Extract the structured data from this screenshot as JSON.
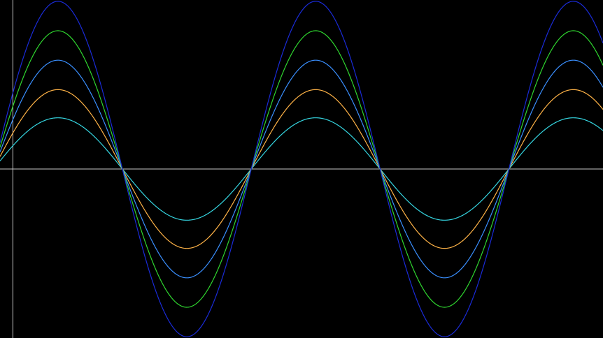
{
  "chart_data": {
    "type": "line",
    "title": "",
    "xlabel": "",
    "ylabel": "",
    "xlim": [
      -0.1,
      4.58
    ],
    "ylim": [
      -1.32,
      1.32
    ],
    "grid": false,
    "legend": "none",
    "background": "#000000",
    "axis_color": "#c8c8c8",
    "period": 2,
    "phase": 0.15,
    "series": [
      {
        "amplitude": 0.4,
        "color": "#35d5e0"
      },
      {
        "amplitude": 0.62,
        "color": "#ffb347"
      },
      {
        "amplitude": 0.85,
        "color": "#3a8fff"
      },
      {
        "amplitude": 1.08,
        "color": "#2fd62f"
      },
      {
        "amplitude": 1.31,
        "color": "#1a2bd8"
      }
    ]
  }
}
